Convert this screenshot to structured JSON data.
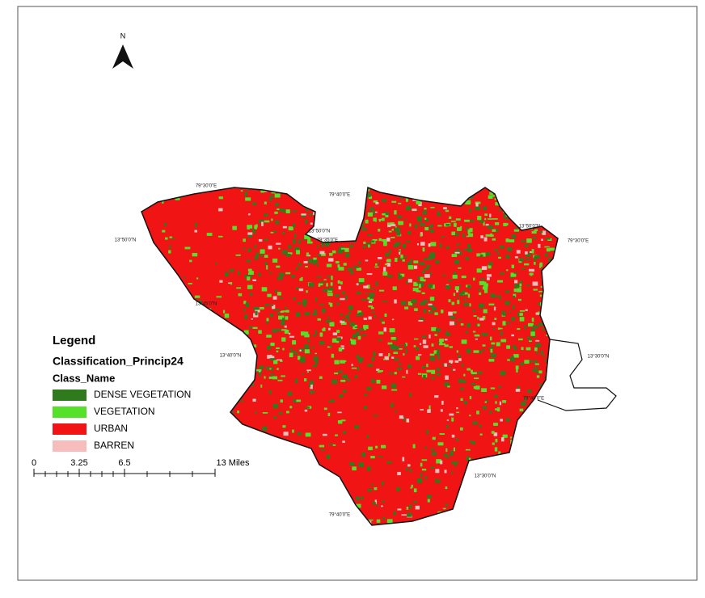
{
  "north_arrow": {
    "label": "N"
  },
  "legend": {
    "title": "Legend",
    "layer": "Classification_Princip24",
    "field": "Class_Name",
    "classes": [
      {
        "name": "DENSE VEGETATION",
        "color": "#2f7a1c"
      },
      {
        "name": "VEGETATION",
        "color": "#55e02a"
      },
      {
        "name": "URBAN",
        "color": "#f01414"
      },
      {
        "name": "BARREN",
        "color": "#f7bcbc"
      }
    ]
  },
  "scale_bar": {
    "labels": [
      "0",
      "3.25",
      "6.5",
      "13 Miles"
    ]
  },
  "coordinates": [
    "79°30'0\"E",
    "13°50'0\"N",
    "79°40'0\"E",
    "13°50'0\"N",
    "79°35'0\"E",
    "13°50'0\"N",
    "79°30'0\"E",
    "13°45'0\"N",
    "13°40'0\"N",
    "13°30'0\"N",
    "79°40'0\"E",
    "13°30'0\"N",
    "79°40'0\"E"
  ]
}
